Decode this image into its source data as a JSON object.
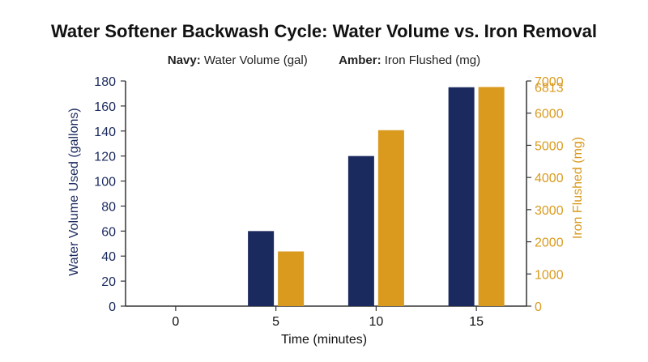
{
  "chart_data": {
    "type": "bar",
    "title": "Water Softener Backwash Cycle: Water Volume vs. Iron Removal",
    "legend": [
      {
        "key": "Navy:",
        "label": "Water Volume (gal)",
        "color": "#1b2a5e"
      },
      {
        "key": "Amber:",
        "label": "Iron Flushed (mg)",
        "color": "#d99a1e"
      }
    ],
    "xlabel": "Time (minutes)",
    "ylabel_left": "Water Volume Used (gallons)",
    "ylabel_right": "Iron Flushed (mg)",
    "categories": [
      "0",
      "5",
      "10",
      "15"
    ],
    "series": [
      {
        "name": "Water Volume (gal)",
        "axis": "left",
        "color": "#1b2a5e",
        "values": [
          0,
          60,
          120,
          175
        ]
      },
      {
        "name": "Iron Flushed (mg)",
        "axis": "right",
        "color": "#d99a1e",
        "values": [
          0,
          1700,
          5470,
          6813
        ]
      }
    ],
    "ylim_left": [
      0,
      180
    ],
    "ylim_right": [
      0,
      7000
    ],
    "yticks_left": [
      0,
      20,
      40,
      60,
      80,
      100,
      120,
      140,
      160,
      180
    ],
    "yticks_right": [
      0,
      1000,
      2000,
      3000,
      4000,
      5000,
      6000,
      7000
    ],
    "annotations": [
      {
        "axis": "right",
        "text": "6813",
        "value": 6813
      }
    ],
    "grid": false
  }
}
